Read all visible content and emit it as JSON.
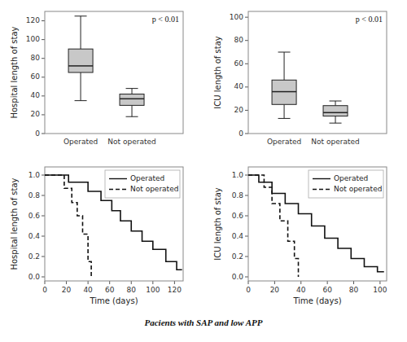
{
  "chart_data": [
    {
      "type": "box",
      "ylabel": "Hospital length of stay",
      "annotations": [
        "p < 0.01"
      ],
      "categories": [
        "Operated",
        "Not operated"
      ],
      "boxes": [
        {
          "low": 35,
          "q1": 65,
          "median": 72,
          "q3": 90,
          "high": 125
        },
        {
          "low": 18,
          "q1": 30,
          "median": 37,
          "q3": 42,
          "high": 48
        }
      ],
      "color": "#c8c8c8",
      "ylim": [
        0,
        130
      ],
      "yticks": [
        0,
        20,
        40,
        60,
        80,
        100,
        120
      ],
      "grid": false
    },
    {
      "type": "box",
      "ylabel": "ICU length of stay",
      "annotations": [
        "p < 0.01"
      ],
      "categories": [
        "Operated",
        "Not operated"
      ],
      "boxes": [
        {
          "low": 13,
          "q1": 25,
          "median": 36,
          "q3": 46,
          "high": 70
        },
        {
          "low": 9,
          "q1": 15,
          "median": 18,
          "q3": 24,
          "high": 28
        }
      ],
      "color": "#c8c8c8",
      "ylim": [
        0,
        105
      ],
      "yticks": [
        0,
        20,
        40,
        60,
        80,
        100
      ],
      "grid": false
    },
    {
      "type": "step",
      "ylabel": "Hospital length of stay",
      "xlabel": "Time (days)",
      "xlim": [
        0,
        128
      ],
      "ylim": [
        -0.04,
        1.08
      ],
      "xticks": [
        0,
        20,
        40,
        60,
        80,
        100,
        120
      ],
      "yticks": [
        {
          "value": 0,
          "label": "0.0"
        },
        0.2,
        0.4,
        0.6,
        0.8,
        {
          "value": 1,
          "label": "1.0"
        }
      ],
      "legend": "upper right",
      "grid": false,
      "series": [
        {
          "name": "Operated",
          "color": "#111111",
          "line_style": "solid",
          "x": [
            0,
            22,
            22,
            40,
            40,
            52,
            52,
            62,
            62,
            70,
            70,
            80,
            80,
            90,
            90,
            100,
            100,
            112,
            112,
            122,
            122,
            127
          ],
          "values": [
            1.0,
            1.0,
            0.93,
            0.93,
            0.84,
            0.84,
            0.75,
            0.75,
            0.65,
            0.65,
            0.55,
            0.55,
            0.45,
            0.45,
            0.35,
            0.35,
            0.27,
            0.27,
            0.15,
            0.15,
            0.07,
            0.07
          ]
        },
        {
          "name": "Not operated",
          "color": "#111111",
          "line_style": "dashed",
          "x": [
            0,
            18,
            18,
            25,
            25,
            30,
            30,
            35,
            35,
            40,
            40,
            43,
            43
          ],
          "values": [
            1.0,
            1.0,
            0.87,
            0.87,
            0.73,
            0.73,
            0.6,
            0.6,
            0.42,
            0.42,
            0.15,
            0.15,
            0.0
          ]
        }
      ]
    },
    {
      "type": "step",
      "ylabel": "ICU length of stay",
      "xlabel": "Time (days)",
      "xlim": [
        0,
        105
      ],
      "ylim": [
        -0.04,
        1.08
      ],
      "xticks": [
        0,
        20,
        40,
        60,
        80,
        100
      ],
      "yticks": [
        {
          "value": 0,
          "label": "0.0"
        },
        0.2,
        0.4,
        0.6,
        0.8,
        {
          "value": 1,
          "label": "1.0"
        }
      ],
      "legend": "upper right",
      "grid": false,
      "series": [
        {
          "name": "Operated",
          "color": "#111111",
          "line_style": "solid",
          "x": [
            0,
            8,
            8,
            18,
            18,
            28,
            28,
            38,
            38,
            48,
            48,
            58,
            58,
            68,
            68,
            78,
            78,
            88,
            88,
            98,
            98,
            103
          ],
          "values": [
            1.0,
            1.0,
            0.93,
            0.93,
            0.82,
            0.82,
            0.72,
            0.72,
            0.62,
            0.62,
            0.5,
            0.5,
            0.38,
            0.38,
            0.28,
            0.28,
            0.18,
            0.18,
            0.1,
            0.1,
            0.05,
            0.05
          ]
        },
        {
          "name": "Not operated",
          "color": "#111111",
          "line_style": "dashed",
          "x": [
            0,
            12,
            12,
            18,
            18,
            24,
            24,
            30,
            30,
            35,
            35,
            38,
            38
          ],
          "values": [
            1.0,
            1.0,
            0.88,
            0.88,
            0.72,
            0.72,
            0.55,
            0.55,
            0.35,
            0.35,
            0.18,
            0.18,
            0.0
          ]
        }
      ]
    }
  ],
  "footnote": "Pacients with SAP and low APP"
}
